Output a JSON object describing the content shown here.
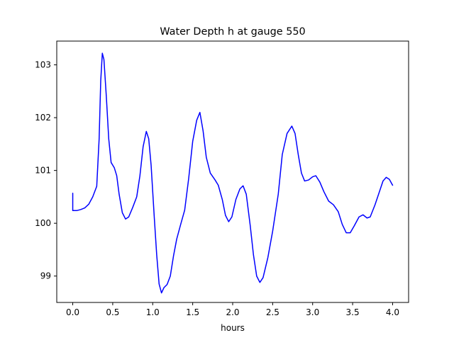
{
  "chart_data": {
    "type": "line",
    "title": "Water Depth h at gauge 550",
    "xlabel": "hours",
    "ylabel": "",
    "xlim": [
      -0.2,
      4.2
    ],
    "ylim": [
      98.5,
      103.45
    ],
    "xticks": [
      0.0,
      0.5,
      1.0,
      1.5,
      2.0,
      2.5,
      3.0,
      3.5,
      4.0
    ],
    "xtick_labels": [
      "0.0",
      "0.5",
      "1.0",
      "1.5",
      "2.0",
      "2.5",
      "3.0",
      "3.5",
      "4.0"
    ],
    "yticks": [
      99,
      100,
      101,
      102,
      103
    ],
    "ytick_labels": [
      "99",
      "100",
      "101",
      "102",
      "103"
    ],
    "grid": false,
    "series": [
      {
        "color": "#0000ff",
        "points": [
          [
            0.0,
            100.57
          ],
          [
            0.0,
            100.24
          ],
          [
            0.05,
            100.24
          ],
          [
            0.1,
            100.26
          ],
          [
            0.15,
            100.29
          ],
          [
            0.2,
            100.36
          ],
          [
            0.25,
            100.5
          ],
          [
            0.3,
            100.7
          ],
          [
            0.33,
            101.6
          ],
          [
            0.35,
            102.7
          ],
          [
            0.37,
            103.22
          ],
          [
            0.39,
            103.1
          ],
          [
            0.42,
            102.4
          ],
          [
            0.45,
            101.6
          ],
          [
            0.48,
            101.15
          ],
          [
            0.52,
            101.05
          ],
          [
            0.55,
            100.9
          ],
          [
            0.58,
            100.55
          ],
          [
            0.62,
            100.2
          ],
          [
            0.66,
            100.08
          ],
          [
            0.7,
            100.12
          ],
          [
            0.75,
            100.3
          ],
          [
            0.8,
            100.5
          ],
          [
            0.84,
            100.9
          ],
          [
            0.88,
            101.45
          ],
          [
            0.92,
            101.74
          ],
          [
            0.95,
            101.6
          ],
          [
            0.98,
            101.1
          ],
          [
            1.02,
            100.1
          ],
          [
            1.05,
            99.4
          ],
          [
            1.08,
            98.85
          ],
          [
            1.11,
            98.68
          ],
          [
            1.14,
            98.78
          ],
          [
            1.18,
            98.84
          ],
          [
            1.22,
            99.0
          ],
          [
            1.26,
            99.38
          ],
          [
            1.3,
            99.7
          ],
          [
            1.35,
            99.98
          ],
          [
            1.4,
            100.25
          ],
          [
            1.45,
            100.85
          ],
          [
            1.5,
            101.55
          ],
          [
            1.55,
            101.95
          ],
          [
            1.59,
            102.1
          ],
          [
            1.63,
            101.75
          ],
          [
            1.67,
            101.25
          ],
          [
            1.72,
            100.95
          ],
          [
            1.78,
            100.82
          ],
          [
            1.82,
            100.72
          ],
          [
            1.87,
            100.45
          ],
          [
            1.91,
            100.15
          ],
          [
            1.95,
            100.03
          ],
          [
            1.99,
            100.12
          ],
          [
            2.04,
            100.45
          ],
          [
            2.09,
            100.65
          ],
          [
            2.13,
            100.71
          ],
          [
            2.17,
            100.55
          ],
          [
            2.22,
            99.95
          ],
          [
            2.26,
            99.4
          ],
          [
            2.3,
            99.0
          ],
          [
            2.34,
            98.88
          ],
          [
            2.38,
            98.97
          ],
          [
            2.44,
            99.35
          ],
          [
            2.5,
            99.85
          ],
          [
            2.57,
            100.55
          ],
          [
            2.62,
            101.3
          ],
          [
            2.68,
            101.7
          ],
          [
            2.74,
            101.84
          ],
          [
            2.78,
            101.7
          ],
          [
            2.82,
            101.3
          ],
          [
            2.86,
            100.95
          ],
          [
            2.9,
            100.8
          ],
          [
            2.95,
            100.82
          ],
          [
            3.0,
            100.88
          ],
          [
            3.04,
            100.9
          ],
          [
            3.09,
            100.78
          ],
          [
            3.14,
            100.6
          ],
          [
            3.2,
            100.42
          ],
          [
            3.26,
            100.35
          ],
          [
            3.32,
            100.22
          ],
          [
            3.37,
            99.98
          ],
          [
            3.42,
            99.82
          ],
          [
            3.47,
            99.82
          ],
          [
            3.52,
            99.95
          ],
          [
            3.58,
            100.12
          ],
          [
            3.63,
            100.16
          ],
          [
            3.68,
            100.1
          ],
          [
            3.72,
            100.12
          ],
          [
            3.78,
            100.35
          ],
          [
            3.84,
            100.62
          ],
          [
            3.88,
            100.8
          ],
          [
            3.92,
            100.87
          ],
          [
            3.96,
            100.83
          ],
          [
            4.0,
            100.72
          ]
        ]
      }
    ]
  }
}
